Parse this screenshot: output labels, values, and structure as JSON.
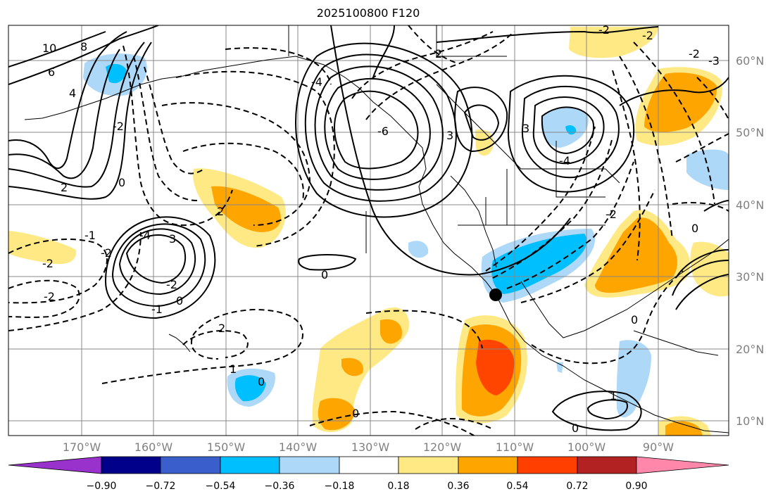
{
  "title": "2025100800 F120",
  "lat_labels": [
    "60°N",
    "50°N",
    "40°N",
    "30°N",
    "20°N",
    "10°N"
  ],
  "lon_labels": [
    "170°W",
    "160°W",
    "150°W",
    "140°W",
    "130°W",
    "120°W",
    "110°W",
    "100°W",
    "90°W"
  ],
  "colorbar": {
    "ticks": [
      "−0.90",
      "−0.72",
      "−0.54",
      "−0.36",
      "−0.18",
      "0.18",
      "0.36",
      "0.54",
      "0.72",
      "0.90"
    ],
    "colors": [
      "#9932cc",
      "#00008b",
      "#3a5fcd",
      "#00bfff",
      "#add8f7",
      "#ffffff",
      "#ffe985",
      "#ffa500",
      "#ff3f00",
      "#b22222",
      "#ff88aa"
    ]
  },
  "contour_labels": [
    "10",
    "8",
    "6",
    "4",
    "2",
    "0",
    "-2",
    "-4",
    "-2",
    "-2",
    "2",
    "0",
    "-1",
    "3",
    "2",
    "-2",
    "1",
    "0",
    "-2",
    "-1",
    "0",
    "-4",
    "-6",
    "3",
    "3",
    "-4",
    "-2",
    "2",
    "-3",
    "-2",
    "0",
    "-2",
    "0",
    "1",
    "0",
    "-2",
    "0"
  ],
  "fill_colors": {
    "yellow": "#ffe985",
    "orange": "#ffa500",
    "red": "#ff4500",
    "light_blue": "#add8f7",
    "blue": "#00bfff"
  },
  "marker": "point"
}
